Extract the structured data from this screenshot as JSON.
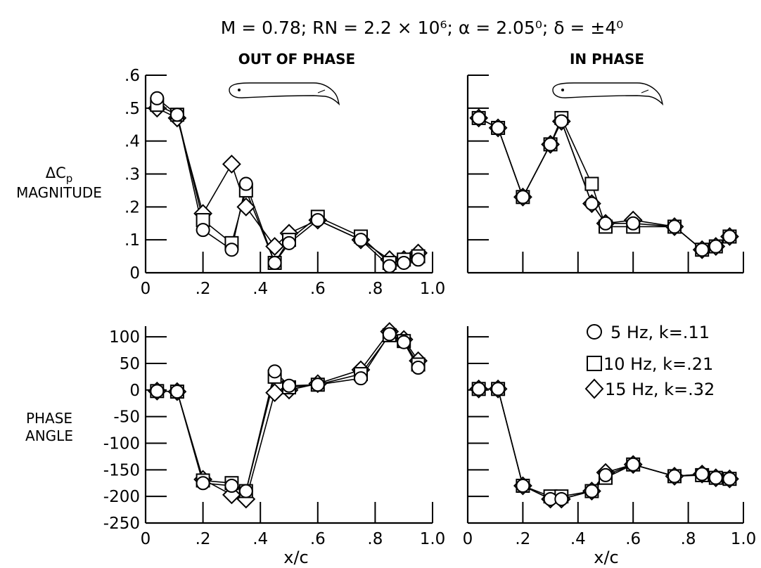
{
  "figure": {
    "title": "M = 0.78; RN = 2.2 × 10⁶; α = 2.05⁰; δ = ±4⁰"
  },
  "columns": {
    "left": "OUT OF PHASE",
    "right": "IN PHASE"
  },
  "axes": {
    "magnitude_label_line1": "ΔC",
    "magnitude_label_sub": "p",
    "magnitude_label_line2": "MAGNITUDE",
    "phase_label_line1": "PHASE",
    "phase_label_line2": "ANGLE",
    "x_label": "x/c"
  },
  "legend": [
    {
      "symbol": "circle",
      "label": "5 Hz, k=.11"
    },
    {
      "symbol": "square",
      "label": "10 Hz, k=.21"
    },
    {
      "symbol": "diamond",
      "label": "15 Hz, k=.32"
    }
  ],
  "chart_data": [
    {
      "type": "line",
      "id": "mag-out",
      "title": "OUT OF PHASE",
      "xlabel": "x/c",
      "ylabel": "ΔCp MAGNITUDE",
      "xlim": [
        0,
        1.0
      ],
      "ylim": [
        0,
        0.6
      ],
      "xticks": [
        0,
        0.2,
        0.4,
        0.6,
        0.8,
        1.0
      ],
      "xtick_labels": [
        "0",
        ".2",
        ".4",
        ".6",
        ".8",
        "1.0"
      ],
      "yticks": [
        0,
        0.1,
        0.2,
        0.3,
        0.4,
        0.5,
        0.6
      ],
      "ytick_labels": [
        "0",
        ".1",
        ".2",
        ".3",
        ".4",
        ".5",
        ".6"
      ],
      "series": [
        {
          "name": "5 Hz, k=.11",
          "marker": "circle",
          "x": [
            0.04,
            0.11,
            0.2,
            0.3,
            0.35,
            0.45,
            0.5,
            0.6,
            0.75,
            0.85,
            0.9,
            0.95
          ],
          "y": [
            0.53,
            0.48,
            0.13,
            0.07,
            0.27,
            0.03,
            0.09,
            0.16,
            0.1,
            0.02,
            0.03,
            0.04
          ]
        },
        {
          "name": "10 Hz, k=.21",
          "marker": "square",
          "x": [
            0.04,
            0.11,
            0.2,
            0.3,
            0.35,
            0.45,
            0.5,
            0.6,
            0.75,
            0.85,
            0.9,
            0.95
          ],
          "y": [
            0.51,
            0.48,
            0.16,
            0.09,
            0.25,
            0.03,
            0.1,
            0.17,
            0.11,
            0.03,
            0.04,
            0.05
          ]
        },
        {
          "name": "15 Hz, k=.32",
          "marker": "diamond",
          "x": [
            0.04,
            0.11,
            0.2,
            0.3,
            0.35,
            0.45,
            0.5,
            0.6,
            0.75,
            0.85,
            0.9,
            0.95
          ],
          "y": [
            0.5,
            0.47,
            0.18,
            0.33,
            0.2,
            0.08,
            0.12,
            0.16,
            0.1,
            0.04,
            0.04,
            0.06
          ]
        }
      ]
    },
    {
      "type": "line",
      "id": "mag-in",
      "title": "IN PHASE",
      "xlabel": "x/c",
      "xlim": [
        0,
        1.0
      ],
      "ylim": [
        0,
        0.6
      ],
      "xticks": [
        0,
        0.2,
        0.4,
        0.6,
        0.8,
        1.0
      ],
      "xtick_labels": [],
      "yticks": [
        0,
        0.1,
        0.2,
        0.3,
        0.4,
        0.5,
        0.6
      ],
      "ytick_labels": [],
      "series": [
        {
          "name": "5 Hz, k=.11",
          "marker": "circle",
          "x": [
            0.04,
            0.11,
            0.2,
            0.3,
            0.34,
            0.45,
            0.5,
            0.6,
            0.75,
            0.85,
            0.9,
            0.95
          ],
          "y": [
            0.47,
            0.44,
            0.23,
            0.39,
            0.46,
            0.21,
            0.15,
            0.15,
            0.14,
            0.07,
            0.08,
            0.11
          ]
        },
        {
          "name": "10 Hz, k=.21",
          "marker": "square",
          "x": [
            0.04,
            0.11,
            0.2,
            0.3,
            0.34,
            0.45,
            0.5,
            0.6,
            0.75,
            0.85,
            0.9,
            0.95
          ],
          "y": [
            0.47,
            0.44,
            0.23,
            0.39,
            0.47,
            0.27,
            0.14,
            0.14,
            0.14,
            0.07,
            0.08,
            0.11
          ]
        },
        {
          "name": "15 Hz, k=.32",
          "marker": "diamond",
          "x": [
            0.04,
            0.11,
            0.2,
            0.3,
            0.34,
            0.45,
            0.5,
            0.6,
            0.75,
            0.85,
            0.9,
            0.95
          ],
          "y": [
            0.47,
            0.44,
            0.23,
            0.39,
            0.46,
            0.21,
            0.15,
            0.16,
            0.14,
            0.07,
            0.08,
            0.11
          ]
        }
      ]
    },
    {
      "type": "line",
      "id": "phase-out",
      "xlabel": "x/c",
      "ylabel": "PHASE ANGLE",
      "xlim": [
        0,
        1.0
      ],
      "ylim": [
        -250,
        120
      ],
      "xticks": [
        0,
        0.2,
        0.4,
        0.6,
        0.8,
        1.0
      ],
      "xtick_labels": [
        "0",
        ".2",
        ".4",
        ".6",
        ".8",
        "1.0"
      ],
      "yticks": [
        -250,
        -200,
        -150,
        -100,
        -50,
        0,
        50,
        100
      ],
      "ytick_labels": [
        "-250",
        "-200",
        "-150",
        "-100",
        "-50",
        "0",
        "50",
        "100"
      ],
      "series": [
        {
          "name": "5 Hz, k=.11",
          "marker": "circle",
          "x": [
            0.04,
            0.11,
            0.2,
            0.3,
            0.35,
            0.45,
            0.5,
            0.6,
            0.75,
            0.85,
            0.9,
            0.95
          ],
          "y": [
            -2,
            -3,
            -175,
            -180,
            -190,
            35,
            8,
            10,
            22,
            105,
            90,
            42
          ]
        },
        {
          "name": "10 Hz, k=.21",
          "marker": "square",
          "x": [
            0.04,
            0.11,
            0.2,
            0.3,
            0.35,
            0.45,
            0.5,
            0.6,
            0.75,
            0.85,
            0.9,
            0.95
          ],
          "y": [
            -2,
            -3,
            -170,
            -175,
            -190,
            25,
            5,
            10,
            30,
            103,
            92,
            48
          ]
        },
        {
          "name": "15 Hz, k=.32",
          "marker": "diamond",
          "x": [
            0.04,
            0.11,
            0.2,
            0.3,
            0.35,
            0.45,
            0.5,
            0.6,
            0.75,
            0.85,
            0.9,
            0.95
          ],
          "y": [
            -2,
            -3,
            -168,
            -197,
            -205,
            -5,
            0,
            12,
            38,
            110,
            95,
            55
          ]
        }
      ]
    },
    {
      "type": "line",
      "id": "phase-in",
      "xlabel": "x/c",
      "xlim": [
        0,
        1.0
      ],
      "ylim": [
        -250,
        120
      ],
      "xticks": [
        0,
        0.2,
        0.4,
        0.6,
        0.8,
        1.0
      ],
      "xtick_labels": [
        "0",
        ".2",
        ".4",
        ".6",
        ".8",
        "1.0"
      ],
      "yticks": [
        -250,
        -200,
        -150,
        -100,
        -50,
        0,
        50,
        100
      ],
      "ytick_labels": [],
      "series": [
        {
          "name": "5 Hz, k=.11",
          "marker": "circle",
          "x": [
            0.04,
            0.11,
            0.2,
            0.3,
            0.34,
            0.45,
            0.5,
            0.6,
            0.75,
            0.85,
            0.9,
            0.95
          ],
          "y": [
            2,
            2,
            -180,
            -205,
            -205,
            -190,
            -160,
            -140,
            -162,
            -158,
            -165,
            -167
          ]
        },
        {
          "name": "10 Hz, k=.21",
          "marker": "square",
          "x": [
            0.04,
            0.11,
            0.2,
            0.3,
            0.34,
            0.45,
            0.5,
            0.6,
            0.75,
            0.85,
            0.9,
            0.95
          ],
          "y": [
            2,
            2,
            -180,
            -200,
            -200,
            -190,
            -165,
            -140,
            -162,
            -160,
            -165,
            -167
          ]
        },
        {
          "name": "15 Hz, k=.32",
          "marker": "diamond",
          "x": [
            0.04,
            0.11,
            0.2,
            0.3,
            0.34,
            0.45,
            0.5,
            0.6,
            0.75,
            0.85,
            0.9,
            0.95
          ],
          "y": [
            2,
            2,
            -180,
            -205,
            -205,
            -190,
            -155,
            -140,
            -162,
            -158,
            -165,
            -167
          ]
        }
      ]
    }
  ]
}
